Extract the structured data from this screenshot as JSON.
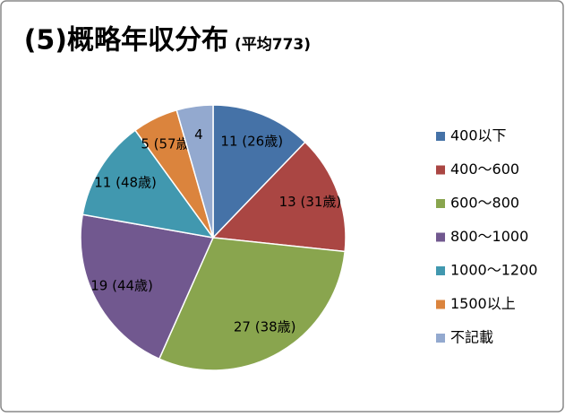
{
  "chart_data": {
    "type": "pie",
    "title": "(5)概略年収分布",
    "subtitle": "(平均773)",
    "categories": [
      "400以下",
      "400～600",
      "600～800",
      "800～1000",
      "1000～1200",
      "1500以上",
      "不記載"
    ],
    "values": [
      11,
      13,
      27,
      19,
      11,
      5,
      4
    ],
    "value_labels": [
      "11 (26歳)",
      "13 (31歳)",
      "27 (38歳)",
      "19 (44歳)",
      "11 (48歳)",
      "5 (57歳)",
      "4"
    ],
    "colors": [
      "#4572a7",
      "#aa4643",
      "#89a54e",
      "#71588f",
      "#4198af",
      "#db843d",
      "#93a9cf"
    ],
    "legend": "right"
  }
}
